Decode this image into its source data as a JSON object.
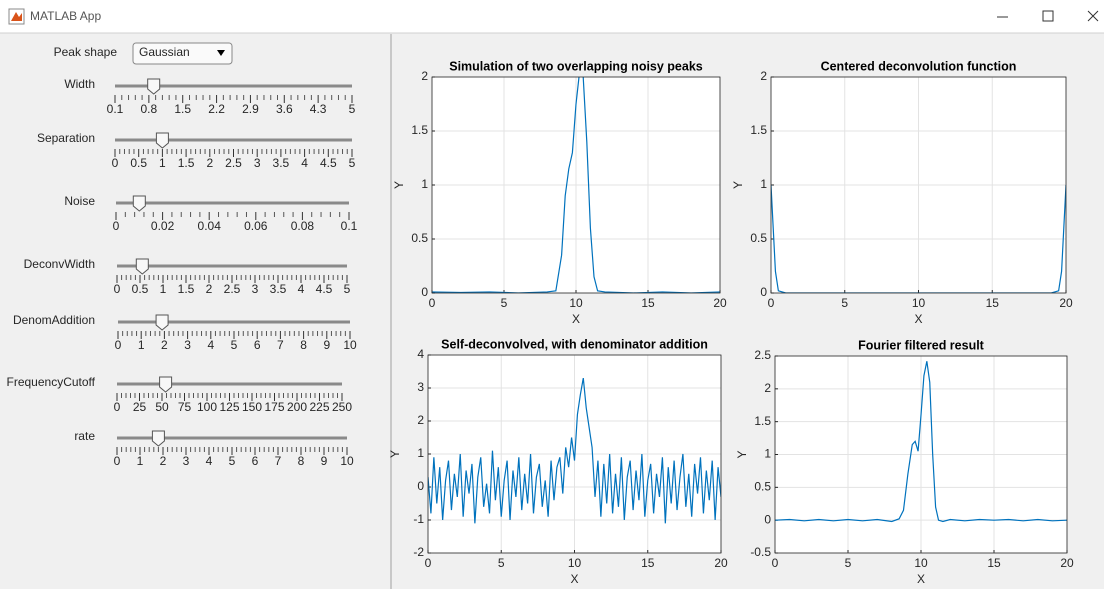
{
  "window": {
    "title": "MATLAB App"
  },
  "controls": {
    "peak_shape": {
      "label": "Peak shape",
      "value": "Gaussian"
    },
    "sliders": [
      {
        "label": "Width",
        "limits": [
          0.1,
          5
        ],
        "ticks": [
          0.1,
          0.8,
          1.5,
          2.2,
          2.9,
          3.6,
          4.3,
          5
        ],
        "value": 0.9
      },
      {
        "label": "Separation",
        "limits": [
          0,
          5
        ],
        "ticks": [
          0,
          0.5,
          1,
          1.5,
          2,
          2.5,
          3,
          3.5,
          4,
          4.5,
          5
        ],
        "value": 1
      },
      {
        "label": "Noise",
        "limits": [
          0,
          0.1
        ],
        "ticks": [
          0,
          0.02,
          0.04,
          0.06,
          0.08,
          0.1
        ],
        "value": 0.01
      },
      {
        "label": "DeconvWidth",
        "limits": [
          0,
          5
        ],
        "ticks": [
          0,
          0.5,
          1,
          1.5,
          2,
          2.5,
          3,
          3.5,
          4,
          4.5,
          5
        ],
        "value": 0.55
      },
      {
        "label": "DenomAddition",
        "limits": [
          0,
          10
        ],
        "ticks": [
          0,
          1,
          2,
          3,
          4,
          5,
          6,
          7,
          8,
          9,
          10
        ],
        "value": 1.9
      },
      {
        "label": "FrequencyCutoff",
        "limits": [
          0,
          250
        ],
        "ticks": [
          0,
          25,
          50,
          75,
          100,
          125,
          150,
          175,
          200,
          225,
          250
        ],
        "value": 54
      },
      {
        "label": "rate",
        "limits": [
          0,
          10
        ],
        "ticks": [
          0,
          1,
          2,
          3,
          4,
          5,
          6,
          7,
          8,
          9,
          10
        ],
        "value": 1.8
      }
    ]
  },
  "chart_data": [
    {
      "type": "line",
      "title": "Simulation of two overlapping noisy peaks",
      "xlabel": "X",
      "ylabel": "Y",
      "x": [
        0,
        2,
        4,
        6,
        8,
        8.6,
        9,
        9.25,
        9.5,
        9.75,
        10,
        10.25,
        10.5,
        10.75,
        11,
        11.25,
        11.5,
        12,
        14,
        16,
        18,
        20
      ],
      "values": [
        0.01,
        0.005,
        0.01,
        0,
        0.01,
        0.02,
        0.35,
        0.9,
        1.15,
        1.3,
        1.75,
        2.05,
        2.0,
        1.4,
        0.6,
        0.15,
        0.02,
        0.01,
        0,
        0.01,
        0,
        0.01
      ],
      "color": "#0072bd",
      "xlim": [
        0,
        20
      ],
      "ylim": [
        0,
        2
      ],
      "xticks": [
        0,
        5,
        10,
        15,
        20
      ],
      "yticks": [
        0,
        0.5,
        1,
        1.5,
        2
      ],
      "grid": true
    },
    {
      "type": "line",
      "title": "Centered deconvolution function",
      "xlabel": "X",
      "ylabel": "Y",
      "x": [
        0,
        0.15,
        0.3,
        0.5,
        1,
        19,
        19.5,
        19.7,
        19.85,
        20
      ],
      "values": [
        1,
        0.6,
        0.2,
        0.02,
        0,
        0,
        0.02,
        0.2,
        0.6,
        1
      ],
      "color": "#0072bd",
      "xlim": [
        0,
        20
      ],
      "ylim": [
        0,
        2
      ],
      "xticks": [
        0,
        5,
        10,
        15,
        20
      ],
      "yticks": [
        0,
        0.5,
        1,
        1.5,
        2
      ],
      "grid": true
    },
    {
      "type": "line",
      "title": "Self-deconvolved, with denominator addition",
      "xlabel": "X",
      "ylabel": "Y",
      "x": [
        0,
        0.2,
        0.4,
        0.6,
        0.8,
        1,
        1.2,
        1.4,
        1.6,
        1.8,
        2,
        2.2,
        2.4,
        2.6,
        2.8,
        3,
        3.2,
        3.4,
        3.6,
        3.8,
        4,
        4.2,
        4.4,
        4.6,
        4.8,
        5,
        5.2,
        5.4,
        5.6,
        5.8,
        6,
        6.2,
        6.4,
        6.6,
        6.8,
        7,
        7.2,
        7.4,
        7.6,
        7.8,
        8,
        8.2,
        8.4,
        8.6,
        8.8,
        9,
        9.2,
        9.4,
        9.6,
        9.8,
        10,
        10.2,
        10.4,
        10.6,
        10.8,
        11,
        11.2,
        11.4,
        11.6,
        11.8,
        12,
        12.2,
        12.4,
        12.6,
        12.8,
        13,
        13.2,
        13.4,
        13.6,
        13.8,
        14,
        14.2,
        14.4,
        14.6,
        14.8,
        15,
        15.2,
        15.4,
        15.6,
        15.8,
        16,
        16.2,
        16.4,
        16.6,
        16.8,
        17,
        17.2,
        17.4,
        17.6,
        17.8,
        18,
        18.2,
        18.4,
        18.6,
        18.8,
        19,
        19.2,
        19.4,
        19.6,
        19.8,
        20
      ],
      "values": [
        0.3,
        -0.8,
        0.9,
        -0.5,
        0.6,
        -1.0,
        0.2,
        0.8,
        -0.7,
        0.4,
        -0.3,
        1.0,
        -0.9,
        0.5,
        -0.2,
        0.7,
        -1.1,
        0.3,
        0.9,
        -0.6,
        0.1,
        -0.8,
        1.1,
        -0.4,
        0.6,
        -0.9,
        0.2,
        0.8,
        -1.0,
        0.5,
        -0.3,
        0.9,
        -0.7,
        0.4,
        -0.5,
        1.0,
        -0.8,
        0.3,
        0.7,
        -0.6,
        0.2,
        -0.9,
        0.8,
        -0.4,
        0.6,
        0.9,
        -0.2,
        1.2,
        0.6,
        1.5,
        0.8,
        2.2,
        2.8,
        3.3,
        2.4,
        1.8,
        1.2,
        -0.3,
        0.8,
        -0.9,
        0.7,
        -0.5,
        1.0,
        -0.8,
        0.4,
        -0.6,
        0.9,
        -1.0,
        0.3,
        0.8,
        -0.7,
        0.5,
        -0.4,
        1.0,
        -0.9,
        0.2,
        0.7,
        -0.8,
        0.4,
        -0.3,
        0.9,
        -1.1,
        0.6,
        -0.5,
        0.8,
        -0.7,
        0.3,
        1.0,
        -0.6,
        0.4,
        -0.9,
        0.7,
        -0.2,
        0.9,
        -0.8,
        0.5,
        -0.4,
        0.8,
        -1.0,
        0.6,
        -0.3
      ],
      "color": "#0072bd",
      "xlim": [
        0,
        20
      ],
      "ylim": [
        -2,
        4
      ],
      "xticks": [
        0,
        5,
        10,
        15,
        20
      ],
      "yticks": [
        -2,
        -1,
        0,
        1,
        2,
        3,
        4
      ],
      "grid": true
    },
    {
      "type": "line",
      "title": "Fourier filtered result",
      "xlabel": "X",
      "ylabel": "Y",
      "x": [
        0,
        1,
        2,
        3,
        4,
        5,
        6,
        7,
        8,
        8.5,
        8.8,
        9.1,
        9.4,
        9.6,
        9.8,
        10,
        10.2,
        10.4,
        10.6,
        10.8,
        11,
        11.2,
        11.5,
        12,
        13,
        14,
        15,
        16,
        17,
        18,
        19,
        20
      ],
      "values": [
        0,
        0.01,
        -0.01,
        0.01,
        -0.01,
        0.01,
        -0.01,
        0.01,
        -0.02,
        0.02,
        0.15,
        0.7,
        1.15,
        1.2,
        1.05,
        1.6,
        2.2,
        2.42,
        2.1,
        1.0,
        0.2,
        0,
        -0.02,
        0.01,
        -0.01,
        0.01,
        0,
        0.01,
        -0.01,
        0.01,
        -0.01,
        0
      ],
      "color": "#0072bd",
      "xlim": [
        0,
        20
      ],
      "ylim": [
        -0.5,
        2.5
      ],
      "xticks": [
        0,
        5,
        10,
        15,
        20
      ],
      "yticks": [
        -0.5,
        0,
        0.5,
        1,
        1.5,
        2,
        2.5
      ],
      "grid": true
    }
  ]
}
